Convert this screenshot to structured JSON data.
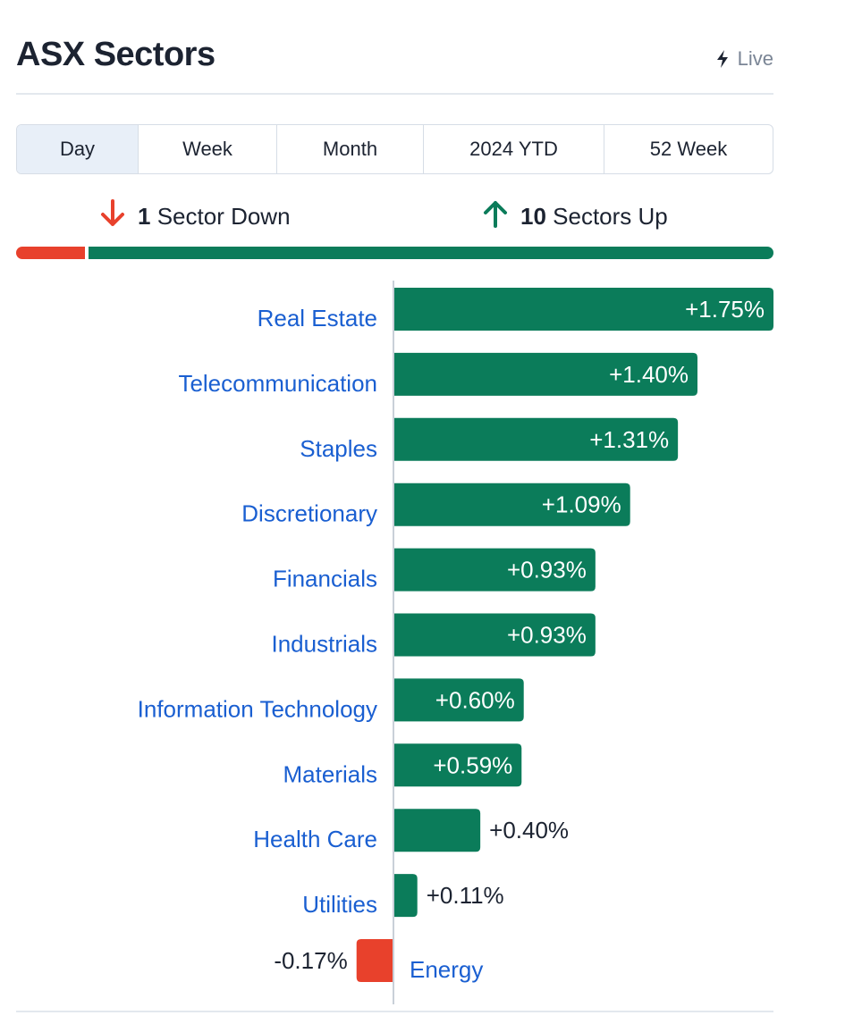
{
  "header": {
    "title": "ASX Sectors",
    "live_label": "Live"
  },
  "tabs": [
    {
      "label": "Day",
      "active": true
    },
    {
      "label": "Week",
      "active": false
    },
    {
      "label": "Month",
      "active": false
    },
    {
      "label": "2024 YTD",
      "active": false
    },
    {
      "label": "52 Week",
      "active": false
    }
  ],
  "summary": {
    "down_count": "1",
    "down_text": "Sector Down",
    "up_count": "10",
    "up_text": "Sectors Up"
  },
  "colors": {
    "up": "#0b7c5a",
    "down": "#e8412c",
    "link": "#1a5fd1",
    "text": "#1c2331"
  },
  "chart_data": {
    "type": "bar",
    "orientation": "horizontal",
    "categories": [
      "Real Estate",
      "Telecommunication",
      "Staples",
      "Discretionary",
      "Financials",
      "Industrials",
      "Information Technology",
      "Materials",
      "Health Care",
      "Utilities",
      "Energy"
    ],
    "values": [
      1.75,
      1.4,
      1.31,
      1.09,
      0.93,
      0.93,
      0.6,
      0.59,
      0.4,
      0.11,
      -0.17
    ],
    "labels": [
      "+1.75%",
      "+1.40%",
      "+1.31%",
      "+1.09%",
      "+0.93%",
      "+0.93%",
      "+0.60%",
      "+0.59%",
      "+0.40%",
      "+0.11%",
      "-0.17%"
    ],
    "unit": "%",
    "title": "",
    "xlabel": "",
    "ylabel": ""
  }
}
